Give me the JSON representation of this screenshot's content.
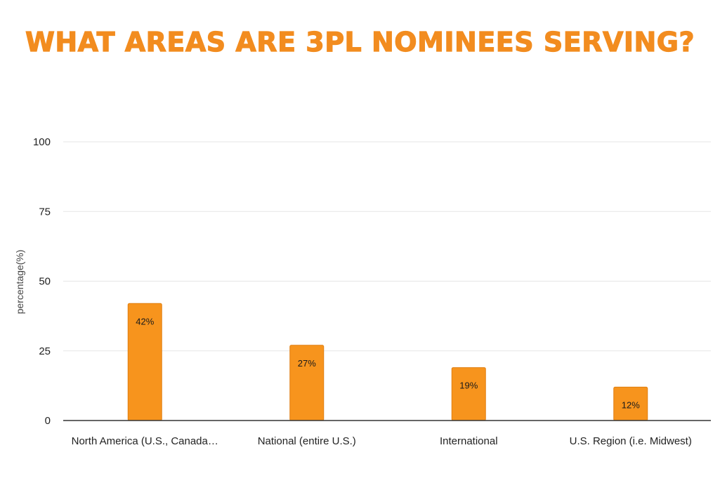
{
  "title": "WHAT AREAS ARE 3PL NOMINEES SERVING?",
  "colors": {
    "title": "#f28c1f",
    "bar": "#f7941d",
    "bar_stroke": "#e07f10",
    "grid": "#e6e6e6",
    "baseline": "#333333"
  },
  "chart_data": {
    "type": "bar",
    "categories": [
      "North America (U.S., Canada…",
      "National (entire U.S.)",
      "International",
      "U.S. Region (i.e. Midwest)"
    ],
    "values": [
      42,
      27,
      19,
      12
    ],
    "data_labels": [
      "42%",
      "27%",
      "19%",
      "12%"
    ],
    "ylabel": "percentage(%)",
    "xlabel": "",
    "ylim": [
      0,
      100
    ],
    "yticks": [
      0,
      25,
      50,
      75,
      100
    ],
    "grid": true,
    "legend": "none"
  }
}
